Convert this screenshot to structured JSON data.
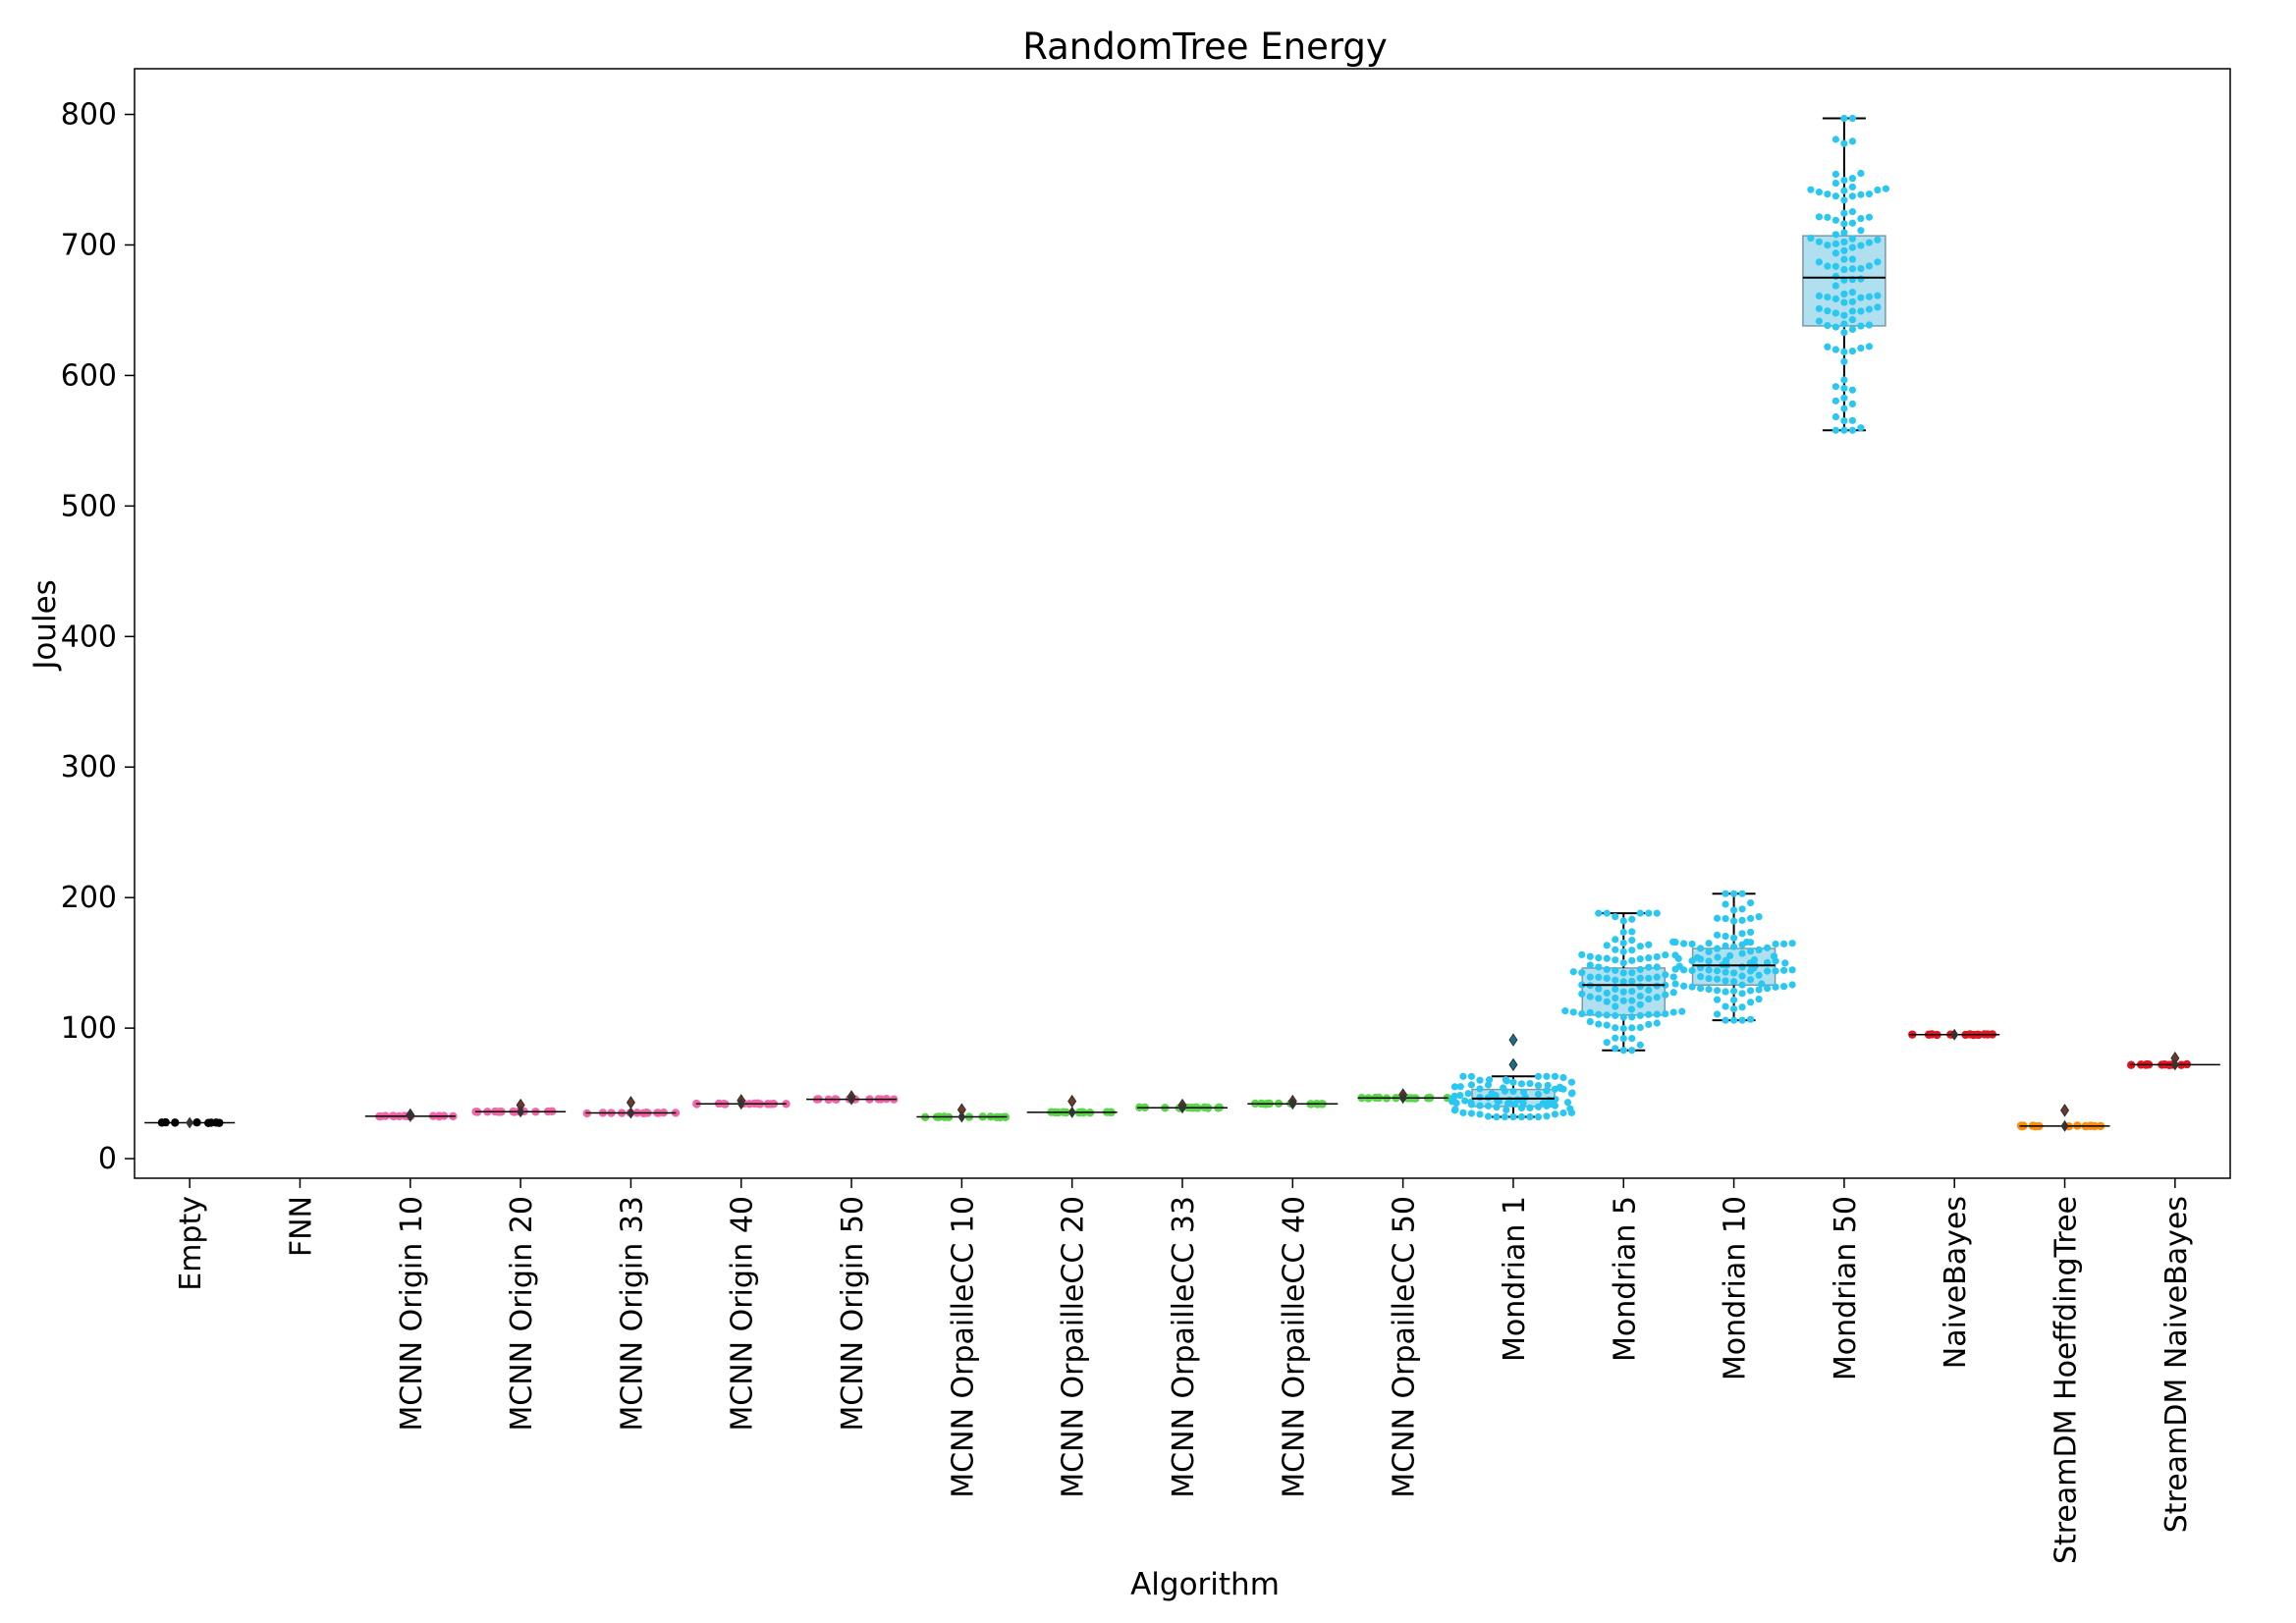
{
  "chart_data": {
    "type": "box-swarm",
    "title": "RandomTree Energy",
    "xlabel": "Algorithm",
    "ylabel": "Joules",
    "ylim": [
      -15,
      835
    ],
    "yticks": [
      0,
      100,
      200,
      300,
      400,
      500,
      600,
      700,
      800
    ],
    "grid": false,
    "legend": "none",
    "categories": [
      {
        "name": "Empty",
        "color": "#000000",
        "q1": 27,
        "median": 27.5,
        "q3": 28,
        "whisker_low": 26.5,
        "whisker_high": 29,
        "outliers": [],
        "n": 8
      },
      {
        "name": "FNN",
        "color": "#000000",
        "empty": true
      },
      {
        "name": "MCNN Origin 10",
        "color": "#f564a9",
        "q1": 32,
        "median": 32.5,
        "q3": 33,
        "whisker_low": 31.5,
        "whisker_high": 34,
        "outliers": [
          33.5
        ],
        "n": 14
      },
      {
        "name": "MCNN Origin 20",
        "color": "#f564a9",
        "q1": 35.5,
        "median": 36,
        "q3": 36.5,
        "whisker_low": 35,
        "whisker_high": 37.5,
        "outliers": [
          41
        ],
        "n": 14
      },
      {
        "name": "MCNN Origin 33",
        "color": "#f564a9",
        "q1": 34.5,
        "median": 35,
        "q3": 35.5,
        "whisker_low": 34,
        "whisker_high": 36.5,
        "outliers": [
          43
        ],
        "n": 14
      },
      {
        "name": "MCNN Origin 40",
        "color": "#f564a9",
        "q1": 41.5,
        "median": 42,
        "q3": 42.5,
        "whisker_low": 41,
        "whisker_high": 43.5,
        "outliers": [
          44.5
        ],
        "n": 14
      },
      {
        "name": "MCNN Origin 50",
        "color": "#f564a9",
        "q1": 45,
        "median": 45.5,
        "q3": 46,
        "whisker_low": 44.5,
        "whisker_high": 46.5,
        "outliers": [
          47.5
        ],
        "n": 14
      },
      {
        "name": "MCNN OrpailleCC 10",
        "color": "#5bd64a",
        "q1": 31.5,
        "median": 32,
        "q3": 32.5,
        "whisker_low": 31,
        "whisker_high": 33.5,
        "outliers": [
          37.5
        ],
        "n": 14
      },
      {
        "name": "MCNN OrpailleCC 20",
        "color": "#5bd64a",
        "q1": 35,
        "median": 35.5,
        "q3": 36,
        "whisker_low": 34.5,
        "whisker_high": 37,
        "outliers": [
          44
        ],
        "n": 14
      },
      {
        "name": "MCNN OrpailleCC 33",
        "color": "#5bd64a",
        "q1": 38.5,
        "median": 39,
        "q3": 39.5,
        "whisker_low": 38,
        "whisker_high": 40.5,
        "outliers": [
          41
        ],
        "n": 14
      },
      {
        "name": "MCNN OrpailleCC 40",
        "color": "#5bd64a",
        "q1": 41.5,
        "median": 42,
        "q3": 42.5,
        "whisker_low": 41,
        "whisker_high": 43.5,
        "outliers": [
          44
        ],
        "n": 14
      },
      {
        "name": "MCNN OrpailleCC 50",
        "color": "#5bd64a",
        "q1": 46,
        "median": 46.5,
        "q3": 47,
        "whisker_low": 45.5,
        "whisker_high": 47.5,
        "outliers": [
          49
        ],
        "n": 14
      },
      {
        "name": "Mondrian 1",
        "color": "#29c7f2",
        "q1": 40,
        "median": 46,
        "q3": 53,
        "whisker_low": 32,
        "whisker_high": 63,
        "outliers": [
          72,
          91
        ],
        "n": 90
      },
      {
        "name": "Mondrian 5",
        "color": "#29c7f2",
        "q1": 110,
        "median": 133,
        "q3": 146,
        "whisker_low": 83,
        "whisker_high": 188,
        "outliers": [],
        "n": 110
      },
      {
        "name": "Mondrian 10",
        "color": "#29c7f2",
        "q1": 133,
        "median": 148,
        "q3": 161,
        "whisker_low": 106,
        "whisker_high": 203,
        "outliers": [],
        "n": 110
      },
      {
        "name": "Mondrian 50",
        "color": "#29c7f2",
        "q1": 638,
        "median": 675,
        "q3": 707,
        "whisker_low": 558,
        "whisker_high": 797,
        "outliers": [],
        "n": 110
      },
      {
        "name": "NaiveBayes",
        "color": "#e3141e",
        "q1": 94,
        "median": 95,
        "q3": 95.5,
        "whisker_low": 93.5,
        "whisker_high": 96,
        "outliers": [],
        "n": 14
      },
      {
        "name": "StreamDM HoeffdingTree",
        "color": "#ff8c0a",
        "q1": 24.5,
        "median": 25,
        "q3": 25.5,
        "whisker_low": 24,
        "whisker_high": 26,
        "outliers": [
          37
        ],
        "n": 14
      },
      {
        "name": "StreamDM NaiveBayes",
        "color": "#e3141e",
        "q1": 71.5,
        "median": 72,
        "q3": 72.5,
        "whisker_low": 71,
        "whisker_high": 73.5,
        "outliers": [
          77
        ],
        "n": 14
      }
    ]
  }
}
